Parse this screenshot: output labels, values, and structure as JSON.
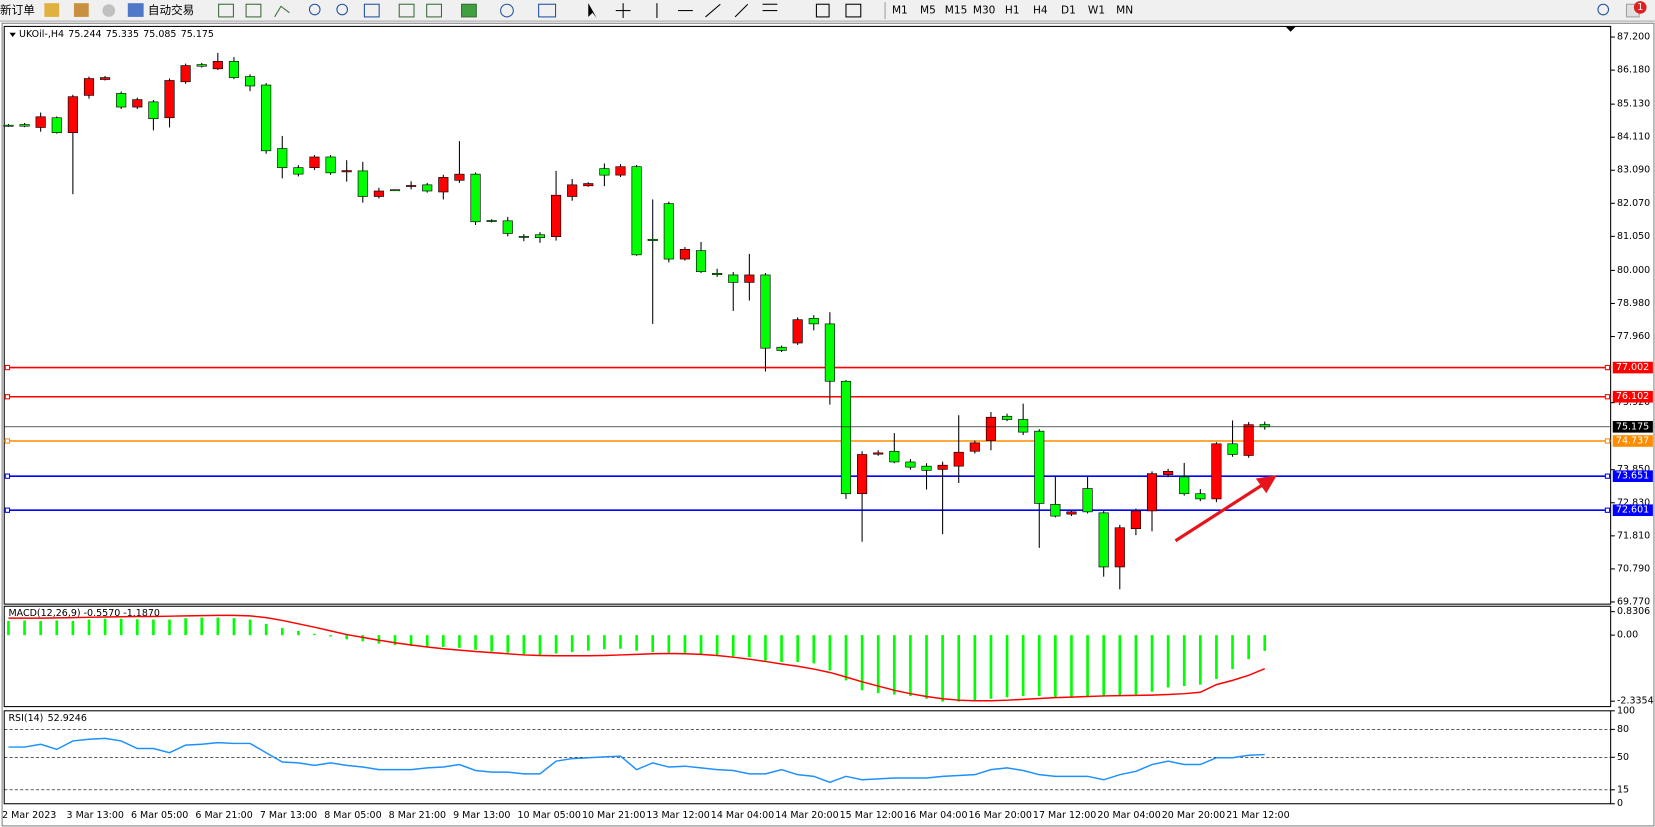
{
  "toolbar": {
    "new_order": "新订单",
    "auto_trading": "自动交易",
    "timeframes": [
      "M1",
      "M5",
      "M15",
      "M30",
      "H1",
      "H4",
      "D1",
      "W1",
      "MN"
    ],
    "notifications": "1"
  },
  "chart_data": [
    {
      "type": "candlestick",
      "title": "UKOil-,H4",
      "up_color": "#ff0000",
      "down_color": "#00ff00",
      "categories": [
        "2 Mar 2023",
        null,
        null,
        null,
        "3 Mar 13:00",
        null,
        null,
        null,
        "6 Mar 05:00",
        null,
        null,
        null,
        "6 Mar 21:00",
        null,
        null,
        null,
        "7 Mar 13:00",
        null,
        null,
        null,
        "8 Mar 05:00",
        null,
        null,
        null,
        "8 Mar 21:00",
        null,
        null,
        null,
        "9 Mar 13:00",
        null,
        null,
        null,
        "10 Mar 05:00",
        null,
        null,
        null,
        "10 Mar 21:00",
        null,
        null,
        null,
        "13 Mar 12:00",
        null,
        null,
        null,
        "14 Mar 04:00",
        null,
        null,
        null,
        "14 Mar 20:00",
        null,
        null,
        null,
        "15 Mar 12:00",
        null,
        null,
        null,
        "16 Mar 04:00",
        null,
        null,
        null,
        "16 Mar 20:00",
        null,
        null,
        null,
        "17 Mar 12:00",
        null,
        null,
        null,
        "20 Mar 04:00",
        null,
        null,
        null,
        "20 Mar 20:00",
        null,
        null,
        null,
        "21 Mar 12:00",
        null,
        null
      ],
      "open": [
        84.48,
        84.5,
        84.41,
        84.71,
        84.25,
        85.4,
        85.89,
        85.46,
        85.04,
        85.2,
        84.71,
        85.82,
        86.35,
        86.22,
        86.45,
        85.98,
        85.72,
        83.76,
        83.17,
        83.17,
        83.5,
        83.04,
        83.07,
        82.28,
        82.49,
        82.6,
        82.64,
        82.42,
        82.78,
        82.97,
        81.54,
        81.53,
        81.05,
        81.1,
        81.04,
        82.28,
        82.61,
        83.14,
        82.94,
        83.2,
        80.96,
        82.06,
        80.35,
        80.61,
        79.91,
        79.86,
        79.63,
        79.86,
        77.63,
        77.76,
        78.52,
        78.35,
        76.58,
        73.11,
        74.33,
        74.42,
        74.09,
        73.96,
        73.86,
        73.96,
        74.42,
        74.75,
        75.5,
        75.4,
        75.04,
        72.78,
        72.48,
        73.27,
        72.52,
        70.85,
        72.03,
        72.58,
        73.7,
        73.63,
        73.11,
        72.95,
        74.65,
        74.29,
        75.244
      ],
      "high": [
        84.52,
        84.55,
        84.87,
        84.75,
        85.42,
        85.98,
        86.0,
        85.52,
        85.33,
        85.26,
        85.92,
        86.38,
        86.4,
        86.71,
        86.58,
        86.05,
        85.78,
        84.15,
        83.25,
        83.56,
        83.56,
        83.4,
        83.35,
        82.55,
        82.5,
        82.75,
        82.7,
        82.95,
        83.99,
        83.02,
        81.58,
        81.65,
        81.12,
        81.18,
        83.07,
        82.82,
        82.72,
        83.3,
        83.28,
        83.25,
        82.19,
        82.12,
        80.72,
        80.88,
        80.05,
        79.95,
        80.51,
        79.92,
        77.68,
        78.55,
        78.62,
        78.71,
        76.62,
        74.42,
        74.45,
        74.98,
        74.18,
        74.05,
        74.1,
        75.53,
        74.75,
        75.63,
        75.58,
        75.89,
        75.1,
        73.67,
        72.6,
        73.67,
        72.58,
        72.15,
        72.65,
        73.8,
        73.88,
        74.06,
        73.25,
        74.7,
        75.37,
        75.32,
        75.335
      ],
      "low": [
        84.43,
        84.42,
        84.28,
        84.22,
        82.35,
        85.3,
        85.86,
        84.98,
        84.98,
        84.32,
        84.41,
        85.76,
        86.26,
        86.18,
        85.9,
        85.53,
        83.6,
        82.84,
        82.9,
        83.1,
        82.95,
        82.74,
        82.09,
        82.22,
        82.46,
        82.5,
        82.4,
        82.19,
        82.7,
        81.4,
        81.48,
        81.05,
        80.9,
        80.85,
        80.92,
        82.15,
        82.58,
        82.6,
        82.88,
        80.45,
        78.35,
        80.25,
        80.3,
        79.92,
        79.8,
        78.75,
        79.07,
        76.88,
        77.48,
        77.7,
        78.15,
        75.86,
        72.95,
        71.63,
        74.28,
        74.05,
        73.85,
        73.24,
        71.86,
        73.44,
        74.35,
        74.45,
        75.35,
        74.92,
        71.44,
        72.38,
        72.42,
        72.5,
        70.55,
        70.16,
        71.83,
        71.95,
        73.62,
        73.05,
        72.88,
        72.85,
        74.25,
        74.22,
        75.085
      ],
      "close": [
        84.47,
        84.45,
        84.74,
        84.25,
        85.36,
        85.92,
        85.95,
        85.04,
        85.27,
        84.68,
        85.86,
        86.32,
        86.3,
        86.45,
        85.95,
        85.69,
        83.69,
        83.17,
        82.97,
        83.5,
        83.01,
        83.08,
        82.28,
        82.45,
        82.47,
        82.62,
        82.45,
        82.87,
        82.97,
        81.5,
        81.52,
        81.14,
        81.03,
        81.01,
        82.32,
        82.64,
        82.68,
        82.94,
        83.2,
        80.48,
        80.92,
        80.35,
        80.65,
        79.96,
        79.87,
        79.63,
        79.86,
        77.6,
        77.53,
        78.48,
        78.35,
        76.58,
        73.11,
        74.32,
        74.37,
        74.09,
        73.93,
        73.83,
        73.99,
        74.39,
        74.68,
        75.47,
        75.4,
        75.01,
        72.81,
        72.42,
        72.55,
        72.55,
        70.85,
        72.06,
        72.58,
        73.73,
        73.8,
        73.11,
        72.95,
        74.65,
        74.32,
        75.24,
        75.175
      ],
      "ylim": [
        69.703,
        87.528
      ],
      "yticks": [
        {
          "value": 87.2,
          "label": "87.200"
        },
        {
          "value": 86.18,
          "label": "86.180"
        },
        {
          "value": 85.13,
          "label": "85.130"
        },
        {
          "value": 84.11,
          "label": "84.110"
        },
        {
          "value": 83.09,
          "label": "83.090"
        },
        {
          "value": 82.07,
          "label": "82.070"
        },
        {
          "value": 81.05,
          "label": "81.050"
        },
        {
          "value": 80,
          "label": "80.000"
        },
        {
          "value": 78.98,
          "label": "78.980"
        },
        {
          "value": 77.96,
          "label": "77.960"
        },
        {
          "value": 75.92,
          "label": "75.920"
        },
        {
          "value": 73.85,
          "label": "73.850"
        },
        {
          "value": 72.83,
          "label": "72.830"
        },
        {
          "value": 71.81,
          "label": "71.810"
        },
        {
          "value": 70.79,
          "label": "70.790"
        },
        {
          "value": 69.77,
          "label": "69.770"
        }
      ],
      "levels": [
        {
          "value": 77.002,
          "color": "#ff0000"
        },
        {
          "value": 76.102,
          "color": "#ff0000"
        },
        {
          "value": 74.737,
          "color": "#ff8c00"
        },
        {
          "value": 73.651,
          "color": "#0000ff"
        },
        {
          "value": 72.601,
          "color": "#0000ff"
        }
      ]
    },
    {
      "type": "macd",
      "title": "MACD(12,26,9) -0.5570 -1.1870",
      "series": [
        {
          "kind": "bar",
          "color": "#00ff00",
          "values": [
            0.5,
            0.52,
            0.5,
            0.52,
            0.5,
            0.55,
            0.58,
            0.58,
            0.56,
            0.55,
            0.55,
            0.6,
            0.62,
            0.62,
            0.6,
            0.55,
            0.4,
            0.25,
            0.15,
            0.05,
            -0.05,
            -0.15,
            -0.22,
            -0.3,
            -0.35,
            -0.38,
            -0.4,
            -0.42,
            -0.45,
            -0.52,
            -0.58,
            -0.62,
            -0.68,
            -0.7,
            -0.65,
            -0.6,
            -0.55,
            -0.5,
            -0.48,
            -0.55,
            -0.6,
            -0.62,
            -0.68,
            -0.7,
            -0.72,
            -0.75,
            -0.78,
            -0.9,
            -0.95,
            -0.95,
            -1.0,
            -1.25,
            -1.6,
            -1.95,
            -2.05,
            -2.1,
            -2.15,
            -2.25,
            -2.35,
            -2.35,
            -2.3,
            -2.25,
            -2.2,
            -2.15,
            -2.15,
            -2.2,
            -2.2,
            -2.15,
            -2.15,
            -2.15,
            -2.1,
            -2.0,
            -1.85,
            -1.8,
            -1.75,
            -1.55,
            -1.2,
            -0.85,
            -0.557
          ]
        },
        {
          "kind": "line",
          "color": "#ff0000",
          "values": [
            0.6,
            0.6,
            0.6,
            0.61,
            0.62,
            0.63,
            0.64,
            0.65,
            0.66,
            0.66,
            0.67,
            0.68,
            0.69,
            0.7,
            0.7,
            0.68,
            0.62,
            0.52,
            0.4,
            0.28,
            0.15,
            0.02,
            -0.08,
            -0.18,
            -0.27,
            -0.35,
            -0.42,
            -0.48,
            -0.53,
            -0.58,
            -0.62,
            -0.66,
            -0.7,
            -0.72,
            -0.73,
            -0.73,
            -0.73,
            -0.72,
            -0.7,
            -0.68,
            -0.66,
            -0.65,
            -0.66,
            -0.68,
            -0.72,
            -0.78,
            -0.85,
            -0.93,
            -1.02,
            -1.1,
            -1.2,
            -1.32,
            -1.48,
            -1.65,
            -1.8,
            -1.95,
            -2.07,
            -2.17,
            -2.25,
            -2.3,
            -2.32,
            -2.32,
            -2.3,
            -2.27,
            -2.24,
            -2.21,
            -2.19,
            -2.17,
            -2.15,
            -2.14,
            -2.13,
            -2.12,
            -2.1,
            -2.07,
            -2.02,
            -1.75,
            -1.6,
            -1.42,
            -1.187
          ]
        }
      ],
      "ylim": [
        -2.526,
        1.021
      ],
      "yticks": [
        0.8306,
        {
          "value": 0,
          "label": "0.00"
        },
        -2.3354
      ]
    },
    {
      "type": "line",
      "title": "RSI(14)",
      "series": [
        {
          "color": "#1e90ff",
          "values": [
            61,
            61,
            64,
            58.5,
            67.6,
            69.4,
            70.3,
            67.6,
            59.4,
            59.4,
            54.9,
            63.1,
            64,
            65.8,
            64.9,
            64.9,
            54.9,
            44.9,
            44,
            41.3,
            44,
            41.3,
            39.5,
            36.7,
            36.7,
            36.7,
            38.6,
            39.5,
            42.2,
            35.8,
            34,
            34,
            32.2,
            32.2,
            45.8,
            48.6,
            49.5,
            50.4,
            51.3,
            36.7,
            44,
            39.5,
            40.4,
            38.6,
            36.7,
            35.8,
            32.2,
            32.2,
            36.7,
            31.3,
            29.5,
            23.1,
            29.5,
            25.8,
            26.8,
            27.7,
            27.7,
            27.7,
            29.5,
            30.4,
            31.3,
            36.7,
            38.6,
            35.8,
            31.3,
            29.5,
            29.5,
            29.5,
            25.8,
            31.3,
            34.9,
            42.2,
            45.8,
            42.2,
            42.2,
            49.5,
            49.5,
            52.2,
            52.9246
          ]
        }
      ],
      "ylim": [
        0,
        100
      ],
      "yticks": [
        100,
        80,
        50,
        15,
        0
      ],
      "levels": [
        80,
        50,
        15
      ]
    }
  ]
}
